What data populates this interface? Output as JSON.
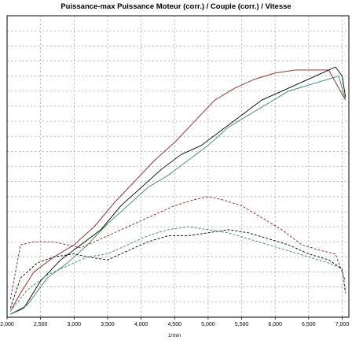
{
  "chart_data": {
    "type": "line",
    "title": "Puissance-max Puissance Moteur (corr.) / Couple (corr.) / Vitesse",
    "xlabel": "1/min",
    "ylabel": "",
    "xlim": [
      2000,
      7100
    ],
    "ylim": [
      0,
      100
    ],
    "x_ticks": [
      "2,000",
      "2,500",
      "3,000",
      "3,500",
      "4,000",
      "4,500",
      "5,000",
      "5,500",
      "6,000",
      "6,500",
      "7,000"
    ],
    "x_tick_values": [
      2000,
      2500,
      3000,
      3500,
      4000,
      4500,
      5000,
      5500,
      6000,
      6500,
      7000
    ],
    "y_grid_values": [
      5,
      10,
      15,
      20,
      25,
      30,
      35,
      40,
      45,
      50,
      55,
      60,
      65,
      70,
      75,
      80,
      85,
      90,
      95,
      100
    ],
    "grid": true,
    "legend": "none",
    "series": [
      {
        "color": "#8b1a1a",
        "dash": false,
        "points": [
          [
            2050,
            2
          ],
          [
            2200,
            8
          ],
          [
            2400,
            15
          ],
          [
            2700,
            20
          ],
          [
            3000,
            24
          ],
          [
            3300,
            30
          ],
          [
            3600,
            38
          ],
          [
            3900,
            45
          ],
          [
            4200,
            52
          ],
          [
            4500,
            58
          ],
          [
            4800,
            65
          ],
          [
            5100,
            72
          ],
          [
            5400,
            76
          ],
          [
            5700,
            79
          ],
          [
            6000,
            81
          ],
          [
            6300,
            82
          ],
          [
            6600,
            82
          ],
          [
            6800,
            82
          ],
          [
            6900,
            78
          ],
          [
            7050,
            72
          ]
        ]
      },
      {
        "color": "#000000",
        "dash": false,
        "points": [
          [
            2050,
            1
          ],
          [
            2250,
            3
          ],
          [
            2500,
            12
          ],
          [
            2800,
            19
          ],
          [
            3100,
            24
          ],
          [
            3400,
            29
          ],
          [
            3700,
            37
          ],
          [
            4000,
            43
          ],
          [
            4300,
            49
          ],
          [
            4600,
            54
          ],
          [
            4900,
            57
          ],
          [
            5200,
            62
          ],
          [
            5500,
            67
          ],
          [
            5800,
            72
          ],
          [
            6100,
            75
          ],
          [
            6400,
            78
          ],
          [
            6700,
            81
          ],
          [
            6900,
            83
          ],
          [
            7000,
            80
          ],
          [
            7050,
            73
          ]
        ]
      },
      {
        "color": "#2e8b57",
        "dash": false,
        "points": [
          [
            2050,
            1
          ],
          [
            2300,
            4
          ],
          [
            2600,
            13
          ],
          [
            2900,
            18
          ],
          [
            3200,
            24
          ],
          [
            3500,
            31
          ],
          [
            3800,
            37
          ],
          [
            4100,
            43
          ],
          [
            4400,
            47
          ],
          [
            4700,
            52
          ],
          [
            5000,
            57
          ],
          [
            5300,
            63
          ],
          [
            5600,
            67
          ],
          [
            5900,
            71
          ],
          [
            6200,
            75
          ],
          [
            6500,
            77
          ],
          [
            6800,
            79
          ],
          [
            6950,
            80
          ],
          [
            7050,
            72
          ]
        ]
      },
      {
        "color": "#8b1a1a",
        "dash": true,
        "points": [
          [
            2050,
            6
          ],
          [
            2200,
            24
          ],
          [
            2400,
            25
          ],
          [
            2700,
            25
          ],
          [
            2900,
            24
          ],
          [
            3100,
            23
          ],
          [
            3300,
            25
          ],
          [
            3600,
            28
          ],
          [
            3900,
            31
          ],
          [
            4200,
            34
          ],
          [
            4500,
            37
          ],
          [
            4800,
            39
          ],
          [
            5000,
            40
          ],
          [
            5200,
            39
          ],
          [
            5500,
            37
          ],
          [
            5800,
            33
          ],
          [
            6100,
            29
          ],
          [
            6400,
            24
          ],
          [
            6700,
            22
          ],
          [
            6900,
            21
          ],
          [
            7050,
            12
          ]
        ]
      },
      {
        "color": "#000000",
        "dash": true,
        "points": [
          [
            2050,
            3
          ],
          [
            2200,
            13
          ],
          [
            2450,
            18
          ],
          [
            2700,
            20
          ],
          [
            3000,
            21
          ],
          [
            3200,
            20
          ],
          [
            3500,
            19
          ],
          [
            3800,
            22
          ],
          [
            4100,
            25
          ],
          [
            4400,
            27
          ],
          [
            4700,
            27
          ],
          [
            5000,
            28
          ],
          [
            5300,
            29
          ],
          [
            5600,
            28
          ],
          [
            5900,
            26
          ],
          [
            6200,
            24
          ],
          [
            6500,
            21
          ],
          [
            6800,
            19
          ],
          [
            7000,
            16
          ],
          [
            7050,
            8
          ]
        ]
      },
      {
        "color": "#2e8b57",
        "dash": true,
        "points": [
          [
            2050,
            2
          ],
          [
            2300,
            9
          ],
          [
            2600,
            14
          ],
          [
            2900,
            17
          ],
          [
            3200,
            20
          ],
          [
            3500,
            21
          ],
          [
            3800,
            24
          ],
          [
            4100,
            27
          ],
          [
            4400,
            29
          ],
          [
            4700,
            30
          ],
          [
            5000,
            29
          ],
          [
            5300,
            28
          ],
          [
            5600,
            26
          ],
          [
            5900,
            24
          ],
          [
            6200,
            22
          ],
          [
            6500,
            20
          ],
          [
            6800,
            18
          ],
          [
            7000,
            16
          ],
          [
            7050,
            9
          ]
        ]
      }
    ]
  }
}
